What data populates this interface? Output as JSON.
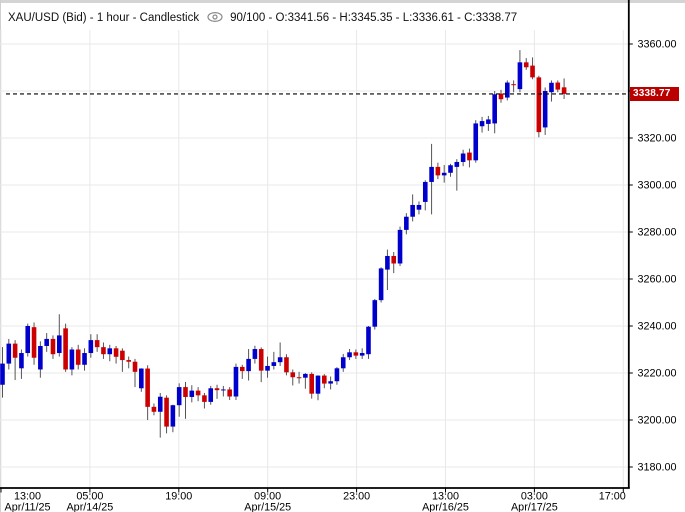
{
  "header": {
    "instrument_line": "XAU/USD (Bid) - 1 hour - Candlestick",
    "ohlc_line": "90/100 - O:3341.56 - H:3345.35 - L:3336.61 - C:3338.77"
  },
  "price_label": {
    "value": "3338.77"
  },
  "chart_data": {
    "type": "candlestick",
    "title": "XAU/USD (Bid) - 1 hour - Candlestick",
    "instrument": "XAU/USD (Bid)",
    "interval": "1 hour",
    "bars_shown": "90/100",
    "last_bar": {
      "open": 3341.56,
      "high": 3345.35,
      "low": 3336.61,
      "close": 3338.77
    },
    "last_price_line": 3338.77,
    "grid": "on",
    "y_axis": {
      "min": 3180,
      "max": 3360,
      "step": 20,
      "side": "right",
      "tick_labels": [
        "3360.00",
        "3340.00",
        "3320.00",
        "3300.00",
        "3280.00",
        "3260.00",
        "3240.00",
        "3220.00",
        "3200.00",
        "3180.00"
      ]
    },
    "x_axis": {
      "ticks": [
        {
          "time": "13:00",
          "date": "Apr/11/25"
        },
        {
          "time": "05:00",
          "date": "Apr/14/25"
        },
        {
          "time": "19:00",
          "date": ""
        },
        {
          "time": "09:00",
          "date": "Apr/15/25"
        },
        {
          "time": "23:00",
          "date": ""
        },
        {
          "time": "13:00",
          "date": "Apr/16/25"
        },
        {
          "time": "03:00",
          "date": "Apr/17/25"
        },
        {
          "time": "17:00",
          "date": ""
        }
      ]
    },
    "colors": {
      "bull": "#0000cd",
      "bear": "#cc0000",
      "wick": "#555555",
      "grid": "#e8e8e8",
      "axis": "#000000",
      "last_price_bg": "#bb0000",
      "last_price_fg": "#ffffff"
    },
    "ohlc": [
      [
        3215.0,
        3231.0,
        3209.5,
        3224.0
      ],
      [
        3224.0,
        3234.5,
        3221.5,
        3232.5
      ],
      [
        3232.5,
        3234.0,
        3217.0,
        3226.5
      ],
      [
        3222.0,
        3230.0,
        3217.5,
        3228.5
      ],
      [
        3228.5,
        3241.0,
        3227.0,
        3240.0
      ],
      [
        3239.5,
        3241.5,
        3223.5,
        3226.5
      ],
      [
        3221.5,
        3233.5,
        3218.0,
        3231.5
      ],
      [
        3231.5,
        3237.0,
        3229.0,
        3234.5
      ],
      [
        3234.5,
        3236.0,
        3226.0,
        3228.0
      ],
      [
        3228.5,
        3245.0,
        3227.0,
        3236.0
      ],
      [
        3239.0,
        3241.0,
        3220.5,
        3221.5
      ],
      [
        3221.5,
        3231.0,
        3219.0,
        3230.0
      ],
      [
        3230.0,
        3232.0,
        3221.5,
        3223.5
      ],
      [
        3223.5,
        3230.5,
        3221.0,
        3228.5
      ],
      [
        3228.5,
        3236.5,
        3226.5,
        3234.0
      ],
      [
        3234.0,
        3236.5,
        3229.0,
        3231.0
      ],
      [
        3231.0,
        3233.0,
        3226.0,
        3228.0
      ],
      [
        3228.0,
        3232.0,
        3225.0,
        3230.5
      ],
      [
        3230.5,
        3231.5,
        3224.0,
        3226.9
      ],
      [
        3229.5,
        3230.5,
        3220.5,
        3225.5
      ],
      [
        3225.5,
        3227.0,
        3222.0,
        3224.8
      ],
      [
        3224.8,
        3226.0,
        3214.0,
        3220.5
      ],
      [
        3213.5,
        3222.0,
        3212.0,
        3221.9
      ],
      [
        3221.9,
        3223.3,
        3200.0,
        3205.6
      ],
      [
        3205.6,
        3207.0,
        3202.0,
        3203.5
      ],
      [
        3203.5,
        3211.5,
        3192.5,
        3209.9
      ],
      [
        3209.5,
        3210.5,
        3194.3,
        3197.2
      ],
      [
        3197.2,
        3206.5,
        3194.8,
        3206.3
      ],
      [
        3206.3,
        3215.6,
        3201.4,
        3214.0
      ],
      [
        3214.0,
        3216.2,
        3200.5,
        3209.8
      ],
      [
        3209.8,
        3214.8,
        3207.5,
        3212.5
      ],
      [
        3212.5,
        3214.0,
        3208.0,
        3210.5
      ],
      [
        3210.5,
        3211.5,
        3204.9,
        3207.7
      ],
      [
        3207.7,
        3214.5,
        3206.5,
        3213.5
      ],
      [
        3213.5,
        3215.0,
        3209.0,
        3212.7
      ],
      [
        3212.7,
        3214.5,
        3210.0,
        3213.0
      ],
      [
        3213.0,
        3214.0,
        3208.5,
        3210.0
      ],
      [
        3210.0,
        3224.0,
        3208.5,
        3222.6
      ],
      [
        3222.6,
        3223.5,
        3217.5,
        3220.8
      ],
      [
        3220.8,
        3230.2,
        3216.8,
        3226.0
      ],
      [
        3226.0,
        3231.6,
        3224.0,
        3230.2
      ],
      [
        3230.2,
        3230.9,
        3216.1,
        3221.0
      ],
      [
        3221.0,
        3227.0,
        3218.0,
        3223.0
      ],
      [
        3223.0,
        3229.0,
        3221.5,
        3224.6
      ],
      [
        3224.6,
        3233.0,
        3223.0,
        3226.7
      ],
      [
        3226.7,
        3228.0,
        3219.0,
        3220.3
      ],
      [
        3220.3,
        3221.5,
        3214.7,
        3218.2
      ],
      [
        3218.2,
        3220.5,
        3215.5,
        3218.0
      ],
      [
        3218.0,
        3220.0,
        3213.3,
        3219.6
      ],
      [
        3219.6,
        3220.3,
        3209.1,
        3211.2
      ],
      [
        3211.2,
        3219.0,
        3208.4,
        3218.9
      ],
      [
        3218.9,
        3219.5,
        3213.5,
        3215.5
      ],
      [
        3215.5,
        3218.5,
        3213.0,
        3216.5
      ],
      [
        3216.5,
        3222.5,
        3215.0,
        3222.0
      ],
      [
        3222.0,
        3228.1,
        3220.5,
        3226.7
      ],
      [
        3226.7,
        3230.2,
        3225.5,
        3228.8
      ],
      [
        3228.8,
        3230.0,
        3226.0,
        3227.4
      ],
      [
        3227.4,
        3230.5,
        3226.0,
        3228.5
      ],
      [
        3228.0,
        3240.0,
        3226.0,
        3239.7
      ],
      [
        3239.7,
        3251.5,
        3238.5,
        3251.0
      ],
      [
        3251.0,
        3265.0,
        3250.0,
        3264.5
      ],
      [
        3264.0,
        3272.5,
        3255.3,
        3269.8
      ],
      [
        3269.8,
        3271.5,
        3262.5,
        3266.6
      ],
      [
        3266.6,
        3282.3,
        3265.5,
        3280.9
      ],
      [
        3280.9,
        3288.0,
        3279.0,
        3286.5
      ],
      [
        3286.5,
        3296.0,
        3284.5,
        3291.5
      ],
      [
        3289.5,
        3293.0,
        3287.5,
        3291.5
      ],
      [
        3292.8,
        3302.0,
        3289.2,
        3301.3
      ],
      [
        3301.3,
        3317.5,
        3287.5,
        3307.7
      ],
      [
        3307.7,
        3309.5,
        3302.5,
        3304.1
      ],
      [
        3304.1,
        3308.5,
        3301.0,
        3305.2
      ],
      [
        3305.2,
        3309.0,
        3303.5,
        3308.4
      ],
      [
        3307.7,
        3311.0,
        3297.6,
        3309.8
      ],
      [
        3309.8,
        3315.0,
        3308.0,
        3313.4
      ],
      [
        3313.8,
        3315.5,
        3307.5,
        3310.5
      ],
      [
        3310.5,
        3327.6,
        3309.5,
        3326.2
      ],
      [
        3325.0,
        3329.0,
        3322.3,
        3327.2
      ],
      [
        3326.0,
        3329.4,
        3323.0,
        3327.9
      ],
      [
        3326.2,
        3340.0,
        3322.0,
        3338.6
      ],
      [
        3338.9,
        3340.5,
        3335.0,
        3336.5
      ],
      [
        3337.2,
        3344.5,
        3336.0,
        3343.6
      ],
      [
        3342.9,
        3344.5,
        3339.5,
        3342.7
      ],
      [
        3340.8,
        3357.4,
        3339.5,
        3352.2
      ],
      [
        3352.2,
        3354.0,
        3349.0,
        3350.1
      ],
      [
        3350.8,
        3354.3,
        3345.0,
        3345.8
      ],
      [
        3345.8,
        3346.5,
        3320.3,
        3322.5
      ],
      [
        3324.5,
        3341.5,
        3321.3,
        3340.0
      ],
      [
        3339.5,
        3344.5,
        3335.5,
        3343.5
      ],
      [
        3343.6,
        3344.5,
        3339.5,
        3340.6
      ],
      [
        3341.56,
        3345.35,
        3336.61,
        3338.77
      ]
    ]
  }
}
